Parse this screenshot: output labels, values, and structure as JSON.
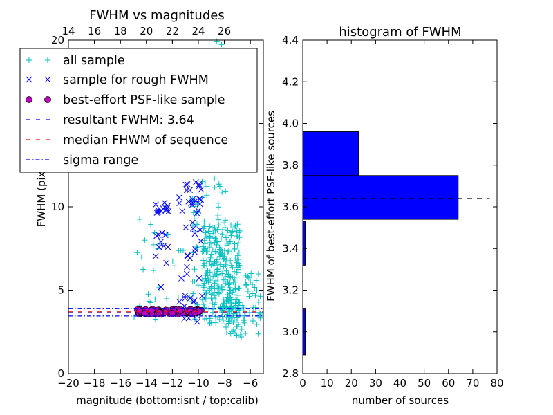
{
  "chart_data": [
    {
      "type": "scatter",
      "title": "FWHM vs magnitudes",
      "xlabel": "magnitude (bottom:isnt / top:calib)",
      "ylabel": "FWHM (pix)",
      "xlim": [
        -20,
        -5
      ],
      "ylim": [
        0,
        20
      ],
      "x_ticks": [
        -20,
        -18,
        -16,
        -14,
        -12,
        -10,
        -8,
        -6
      ],
      "x_tick_labels": [
        "−20",
        "−18",
        "−16",
        "−14",
        "−12",
        "−10",
        "−8",
        "−6"
      ],
      "y_ticks": [
        0,
        5,
        10,
        15,
        20
      ],
      "y_tick_labels": [
        "0",
        "5",
        "10",
        "",
        "20"
      ],
      "top_axis": {
        "ticks": [
          14,
          16,
          18,
          20,
          22,
          24,
          26
        ],
        "offset": 34
      },
      "legend": {
        "location": "top-left"
      },
      "series": [
        {
          "name": "all sample",
          "marker": "plus",
          "color": "#00bfbf",
          "clusters": [
            {
              "x_range": [
                -15,
                -10
              ],
              "y_range": [
                3.0,
                10.5
              ],
              "count": 45
            },
            {
              "x_range": [
                -10.5,
                -9.2
              ],
              "y_range": [
                6.0,
                16.0
              ],
              "count": 40
            },
            {
              "x_range": [
                -9.7,
                -6.8
              ],
              "y_range": [
                3.0,
                9.0
              ],
              "count": 280
            },
            {
              "x_range": [
                -9.0,
                -7.8
              ],
              "y_range": [
                8.5,
                20.0
              ],
              "count": 60
            },
            {
              "x_range": [
                -8.2,
                -5.2
              ],
              "y_range": [
                2.2,
                6.0
              ],
              "count": 90
            }
          ]
        },
        {
          "name": "sample for rough FWHM",
          "marker": "x",
          "color": "#0000ff",
          "clusters": [
            {
              "x_range": [
                -13.3,
                -12.3
              ],
              "y_range": [
                5.0,
                10.3
              ],
              "count": 24
            },
            {
              "x_range": [
                -11.5,
                -9.6
              ],
              "y_range": [
                3.1,
                11.5
              ],
              "count": 48
            },
            {
              "x_range": [
                -11.0,
                -10.6
              ],
              "y_range": [
                10.5,
                11.5
              ],
              "count": 4
            }
          ]
        },
        {
          "name": "best-effort PSF-like sample",
          "marker": "circle",
          "color": "#bf00bf",
          "clusters": [
            {
              "x_range": [
                -14.8,
                -9.8
              ],
              "y_range": [
                3.55,
                3.85
              ],
              "count": 95
            }
          ]
        }
      ],
      "hlines": [
        {
          "name": "resultant FWHM: 3.64",
          "y": 3.64,
          "style": "dashed",
          "color": "#0000ff"
        },
        {
          "name": "median FHWM of sequence",
          "y": 3.7,
          "style": "dashed",
          "color": "#ff0000"
        },
        {
          "name": "sigma range",
          "y": 3.89,
          "style": "dashdot",
          "color": "#0000ff"
        },
        {
          "name": "sigma range",
          "y": 3.45,
          "style": "dashdot",
          "color": "#0000ff"
        }
      ]
    },
    {
      "type": "bar",
      "orientation": "horizontal",
      "title": "histogram of FWHM",
      "xlabel": "number of sources",
      "ylabel": "FWHM of best-effort PSF-like sources",
      "xlim": [
        0,
        80
      ],
      "ylim": [
        2.8,
        4.4
      ],
      "x_ticks": [
        0,
        10,
        20,
        30,
        40,
        50,
        60,
        70,
        80
      ],
      "y_ticks": [
        2.8,
        3.0,
        3.2,
        3.4,
        3.6,
        3.8,
        4.0,
        4.2,
        4.4
      ],
      "y_tick_labels": [
        "2.8",
        "3.0",
        "3.2",
        "3.4",
        "3.6",
        "3.8",
        "4.0",
        "4.2",
        "4.4"
      ],
      "color": "#0000ff",
      "bins": [
        {
          "y0": 2.89,
          "y1": 3.11,
          "count": 1
        },
        {
          "y0": 3.32,
          "y1": 3.53,
          "count": 1
        },
        {
          "y0": 3.54,
          "y1": 3.75,
          "count": 64
        },
        {
          "y0": 3.75,
          "y1": 3.96,
          "count": 23
        }
      ],
      "reference_line": {
        "y": 3.64,
        "x_range": [
          0,
          77
        ],
        "style": "dashed",
        "color": "#000000"
      }
    }
  ]
}
